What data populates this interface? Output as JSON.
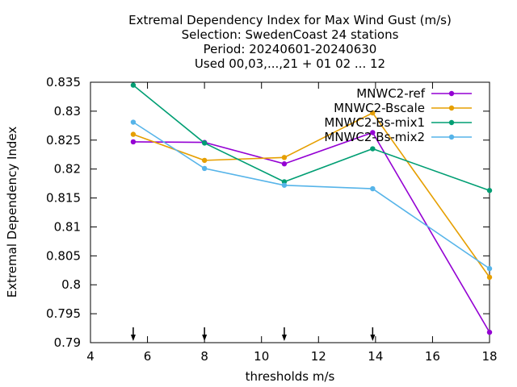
{
  "chart_data": {
    "type": "line",
    "title_lines": [
      "Extremal Dependency Index  for Max Wind Gust (m/s)",
      "Selection: SwedenCoast      24 stations",
      "Period: 20240601-20240630",
      "Used 00,03,...,21 + 01 02 ... 12"
    ],
    "xlabel": "thresholds m/s",
    "ylabel": "Extremal Dependency Index",
    "xlim": [
      4,
      18
    ],
    "ylim": [
      0.79,
      0.835
    ],
    "xticks": [
      4,
      6,
      8,
      10,
      12,
      14,
      16,
      18
    ],
    "xtick_labels": [
      "4",
      "6",
      "8",
      "10",
      "12",
      "14",
      "16",
      "18"
    ],
    "yticks": [
      0.79,
      0.795,
      0.8,
      0.805,
      0.81,
      0.815,
      0.82,
      0.825,
      0.83,
      0.835
    ],
    "ytick_labels": [
      "0.79",
      "0.795",
      "0.8",
      "0.805",
      "0.81",
      "0.815",
      "0.82",
      "0.825",
      "0.83",
      "0.835"
    ],
    "grid": false,
    "legend_position": "top-right",
    "arrow_x": [
      5.5,
      8,
      10.8,
      13.9
    ],
    "series": [
      {
        "name": "MNWC2-ref",
        "color": "#9400d3",
        "x": [
          5.5,
          8,
          10.8,
          13.9,
          18
        ],
        "y": [
          0.8247,
          0.8246,
          0.8209,
          0.8263,
          0.7918
        ]
      },
      {
        "name": "MNWC2-Bscale",
        "color": "#e69f00",
        "x": [
          5.5,
          8,
          10.8,
          13.9,
          18
        ],
        "y": [
          0.826,
          0.8215,
          0.822,
          0.8297,
          0.8013
        ]
      },
      {
        "name": "MNWC2-Bs-mix1",
        "color": "#009e73",
        "x": [
          5.5,
          8,
          10.8,
          13.9,
          18
        ],
        "y": [
          0.8345,
          0.8245,
          0.8178,
          0.8235,
          0.8163
        ]
      },
      {
        "name": "MNWC2-Bs-mix2",
        "color": "#56b4e9",
        "x": [
          5.5,
          8,
          10.8,
          13.9,
          18
        ],
        "y": [
          0.8281,
          0.8201,
          0.8172,
          0.8166,
          0.8028
        ]
      }
    ]
  }
}
